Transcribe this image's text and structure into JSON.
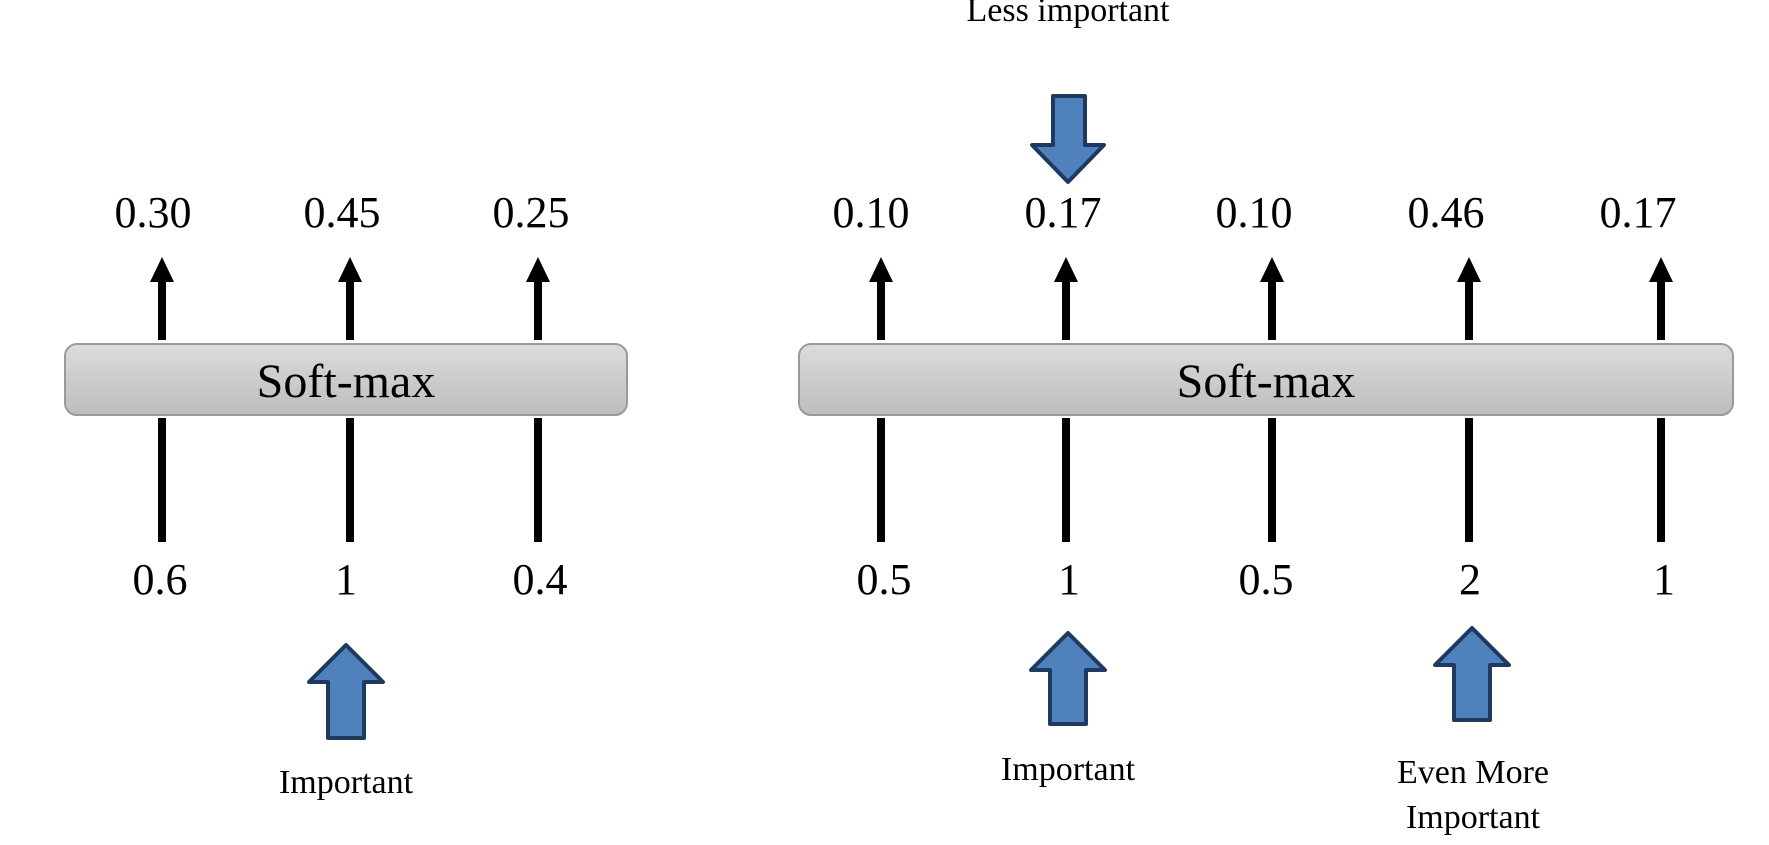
{
  "colors": {
    "arrow_fill": "#4f81bd",
    "arrow_stroke": "#1f3a5f",
    "box_fill_top": "#dcdcdc",
    "box_fill_bottom": "#bdbdbd",
    "box_stroke": "#9a9a9a",
    "line": "#000000"
  },
  "left_panel": {
    "softmax_label": "Soft-max",
    "inputs": [
      "0.6",
      "1",
      "0.4"
    ],
    "outputs": [
      "0.30",
      "0.45",
      "0.25"
    ],
    "annotation": "Important"
  },
  "right_panel": {
    "softmax_label": "Soft-max",
    "inputs": [
      "0.5",
      "1",
      "0.5",
      "2",
      "1"
    ],
    "outputs": [
      "0.10",
      "0.17",
      "0.10",
      "0.46",
      "0.17"
    ],
    "annotation_top": "Less important",
    "annotation_important": "Important",
    "annotation_even_more_line1": "Even More",
    "annotation_even_more_line2": "Important"
  }
}
